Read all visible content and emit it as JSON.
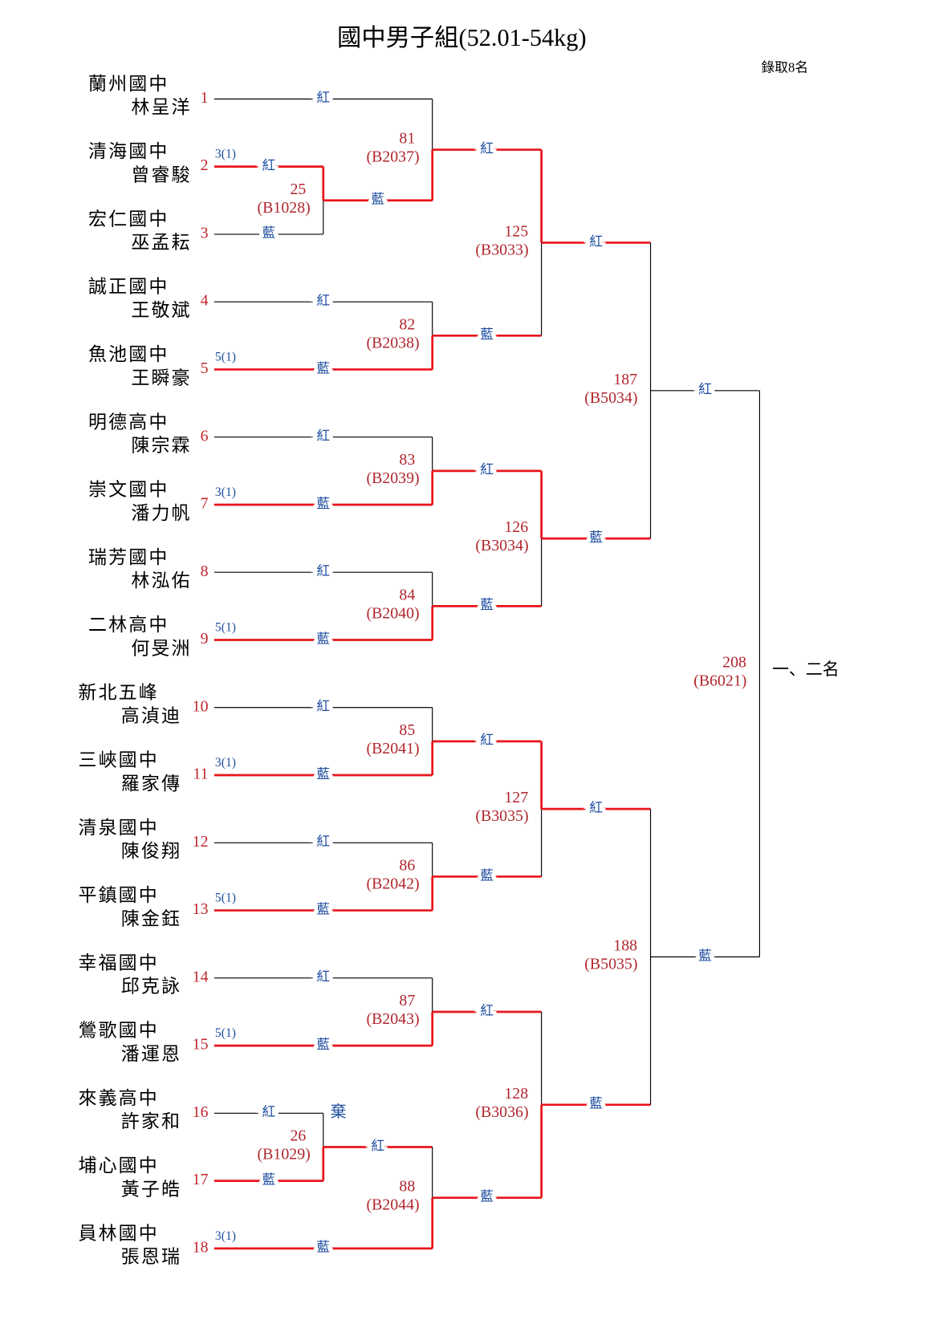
{
  "header": {
    "title": "國中男子組(52.01-54kg)",
    "note": "錄取8名"
  },
  "players": [
    {
      "seed": 1,
      "school": "蘭州國中",
      "name": "林呈洋"
    },
    {
      "seed": 2,
      "school": "清海國中",
      "name": "曾睿駿",
      "score": "3(1)"
    },
    {
      "seed": 3,
      "school": "宏仁國中",
      "name": "巫孟耘"
    },
    {
      "seed": 4,
      "school": "誠正國中",
      "name": "王敬斌"
    },
    {
      "seed": 5,
      "school": "魚池國中",
      "name": "王瞬豪",
      "score": "5(1)"
    },
    {
      "seed": 6,
      "school": "明德高中",
      "name": "陳宗霖"
    },
    {
      "seed": 7,
      "school": "崇文國中",
      "name": "潘力帆",
      "score": "3(1)"
    },
    {
      "seed": 8,
      "school": "瑞芳國中",
      "name": "林泓佑"
    },
    {
      "seed": 9,
      "school": "二林高中",
      "name": "何旻洲",
      "score": "5(1)"
    },
    {
      "seed": 10,
      "school": "新北五峰",
      "name": "高湞迪"
    },
    {
      "seed": 11,
      "school": "三峽國中",
      "name": "羅家傳",
      "score": "3(1)"
    },
    {
      "seed": 12,
      "school": "清泉國中",
      "name": "陳俊翔"
    },
    {
      "seed": 13,
      "school": "平鎮國中",
      "name": "陳金鈺",
      "score": "5(1)"
    },
    {
      "seed": 14,
      "school": "幸福國中",
      "name": "邱克詠"
    },
    {
      "seed": 15,
      "school": "鶯歌國中",
      "name": "潘運恩",
      "score": "5(1)"
    },
    {
      "seed": 16,
      "school": "來義高中",
      "name": "許家和"
    },
    {
      "seed": 17,
      "school": "埔心國中",
      "name": "黃子皓"
    },
    {
      "seed": 18,
      "school": "員林國中",
      "name": "張恩瑞",
      "score": "3(1)"
    }
  ],
  "matches": [
    {
      "number": 25,
      "code": "(B1028)",
      "red": "紅",
      "blue": "藍"
    },
    {
      "number": 26,
      "code": "(B1029)",
      "red": "紅",
      "blue": "藍",
      "forfeit": "棄"
    },
    {
      "number": 81,
      "code": "(B2037)",
      "red": "紅",
      "blue": "藍"
    },
    {
      "number": 82,
      "code": "(B2038)",
      "red": "紅",
      "blue": "藍"
    },
    {
      "number": 83,
      "code": "(B2039)",
      "red": "紅",
      "blue": "藍"
    },
    {
      "number": 84,
      "code": "(B2040)",
      "red": "紅",
      "blue": "藍"
    },
    {
      "number": 85,
      "code": "(B2041)",
      "red": "紅",
      "blue": "藍"
    },
    {
      "number": 86,
      "code": "(B2042)",
      "red": "紅",
      "blue": "藍"
    },
    {
      "number": 87,
      "code": "(B2043)",
      "red": "紅",
      "blue": "藍"
    },
    {
      "number": 88,
      "code": "(B2044)",
      "red": "紅",
      "blue": "藍"
    },
    {
      "number": 125,
      "code": "(B3033)",
      "red": "紅",
      "blue": "藍"
    },
    {
      "number": 126,
      "code": "(B3034)",
      "red": "紅",
      "blue": "藍"
    },
    {
      "number": 127,
      "code": "(B3035)",
      "red": "紅",
      "blue": "藍"
    },
    {
      "number": 128,
      "code": "(B3036)",
      "red": "紅",
      "blue": "藍"
    },
    {
      "number": 187,
      "code": "(B5034)",
      "red": "紅",
      "blue": "藍"
    },
    {
      "number": 188,
      "code": "(B5035)",
      "red": "紅",
      "blue": "藍"
    },
    {
      "number": 208,
      "code": "(B6021)",
      "red": "紅",
      "blue": "藍"
    }
  ],
  "final_label": "一、二名"
}
